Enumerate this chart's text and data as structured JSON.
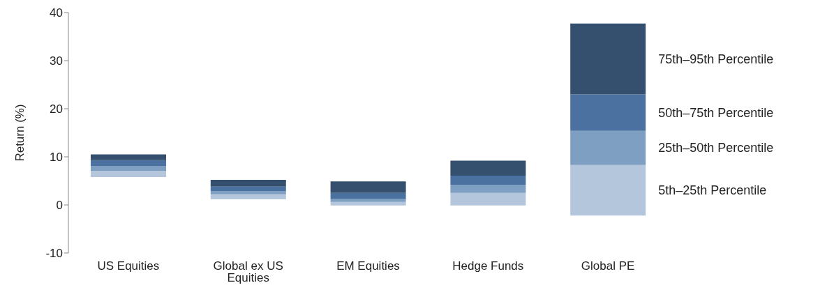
{
  "chart_data": {
    "type": "bar",
    "ylabel": "Return (%)",
    "categories": [
      "US Equities",
      "Global ex US Equities",
      "EM Equities",
      "Hedge Funds",
      "Global PE"
    ],
    "series": [
      {
        "name": "5th–25th Percentile",
        "color": "#b3c6dc",
        "base": [
          5.8,
          1.2,
          -0.1,
          -0.1,
          -2.2
        ],
        "values": [
          1.3,
          1.0,
          0.7,
          2.6,
          10.5
        ]
      },
      {
        "name": "25th–50th Percentile",
        "color": "#7f9fc2",
        "base": [
          7.1,
          2.2,
          0.6,
          2.5,
          8.3
        ],
        "values": [
          1.0,
          0.7,
          0.7,
          1.7,
          7.1
        ]
      },
      {
        "name": "50th–75th Percentile",
        "color": "#4a71a0",
        "base": [
          8.1,
          2.9,
          1.3,
          4.2,
          15.4
        ],
        "values": [
          1.2,
          0.9,
          1.2,
          1.9,
          7.6
        ]
      },
      {
        "name": "75th–95th Percentile",
        "color": "#354f6e",
        "base": [
          9.3,
          3.8,
          2.5,
          6.1,
          23.0
        ],
        "values": [
          1.2,
          1.4,
          2.4,
          3.1,
          14.7
        ]
      }
    ],
    "ylim": [
      -10,
      40
    ],
    "yticks": [
      -10,
      0,
      10,
      20,
      30,
      40
    ],
    "legend": "right"
  }
}
